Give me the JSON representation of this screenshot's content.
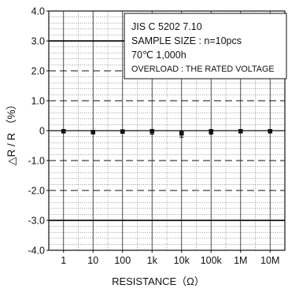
{
  "chart_data": {
    "type": "scatter",
    "title": "",
    "xlabel": "RESISTANCE（Ω）",
    "ylabel": "△R / R （%）",
    "categories": [
      "1",
      "10",
      "100",
      "1k",
      "10k",
      "100k",
      "1M",
      "10M"
    ],
    "ylim": [
      -4.0,
      4.0
    ],
    "yticks": [
      "4.0",
      "3.0",
      "2.0",
      "1.0",
      "0",
      "-1.0",
      "-2.0",
      "-3.0",
      "-4.0"
    ],
    "ytick_values": [
      4,
      3,
      2,
      1,
      0,
      -1,
      -2,
      -3,
      -4
    ],
    "limits": {
      "upper": 3.0,
      "lower": -3.0
    },
    "dashed_lines": [
      2,
      1,
      -1,
      -2
    ],
    "grid": true,
    "series": [
      {
        "values": [
          -0.02,
          -0.05,
          -0.03,
          -0.02,
          -0.09,
          -0.03,
          -0.02,
          -0.02
        ]
      }
    ],
    "ranges": [
      {
        "min": -0.06,
        "max": 0.03
      },
      {
        "min": -0.07,
        "max": -0.03
      },
      {
        "min": -0.06,
        "max": 0.02
      },
      {
        "min": -0.12,
        "max": 0.04
      },
      {
        "min": -0.22,
        "max": -0.02
      },
      {
        "min": -0.12,
        "max": 0.04
      },
      {
        "min": -0.06,
        "max": 0.02
      },
      {
        "min": -0.06,
        "max": 0.02
      }
    ],
    "annotation_lines": [
      "JIS C 5202 7.10",
      "SAMPLE SIZE : n=10pcs",
      "70℃ 1,000h",
      "OVERLOAD : THE RATED VOLTAGE"
    ],
    "colors": {
      "ink": "#111111",
      "grid": "#333333",
      "background": "#ffffff"
    }
  }
}
